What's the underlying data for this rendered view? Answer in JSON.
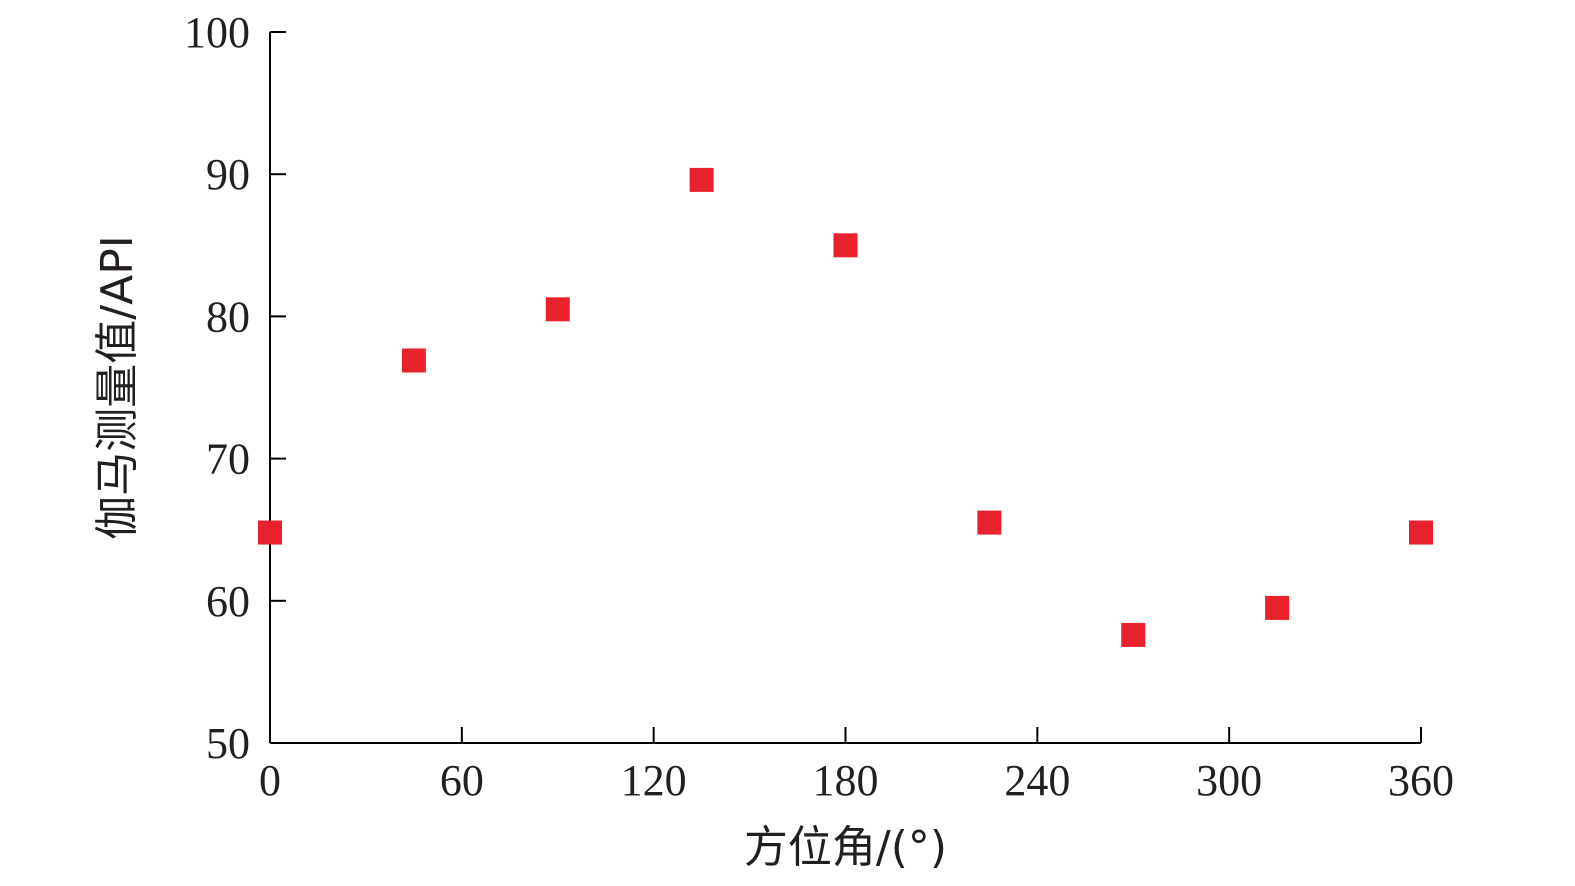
{
  "chart_data": {
    "type": "scatter",
    "title": "",
    "xlabel": "方位角/(°)",
    "ylabel": "伽马测量值/API",
    "xlim": [
      0,
      360
    ],
    "ylim": [
      50,
      100
    ],
    "xticks": [
      0,
      60,
      120,
      180,
      240,
      300,
      360
    ],
    "yticks": [
      50,
      60,
      70,
      80,
      90,
      100
    ],
    "grid": false,
    "legend": "none",
    "marker": "square",
    "color": "#e8222b",
    "series": [
      {
        "points": [
          {
            "x": 0,
            "y": 64.8
          },
          {
            "x": 45,
            "y": 76.9
          },
          {
            "x": 90,
            "y": 80.5
          },
          {
            "x": 135,
            "y": 89.6
          },
          {
            "x": 180,
            "y": 85.0
          },
          {
            "x": 225,
            "y": 65.5
          },
          {
            "x": 270,
            "y": 57.6
          },
          {
            "x": 315,
            "y": 59.5
          },
          {
            "x": 360,
            "y": 64.8
          }
        ]
      }
    ]
  }
}
